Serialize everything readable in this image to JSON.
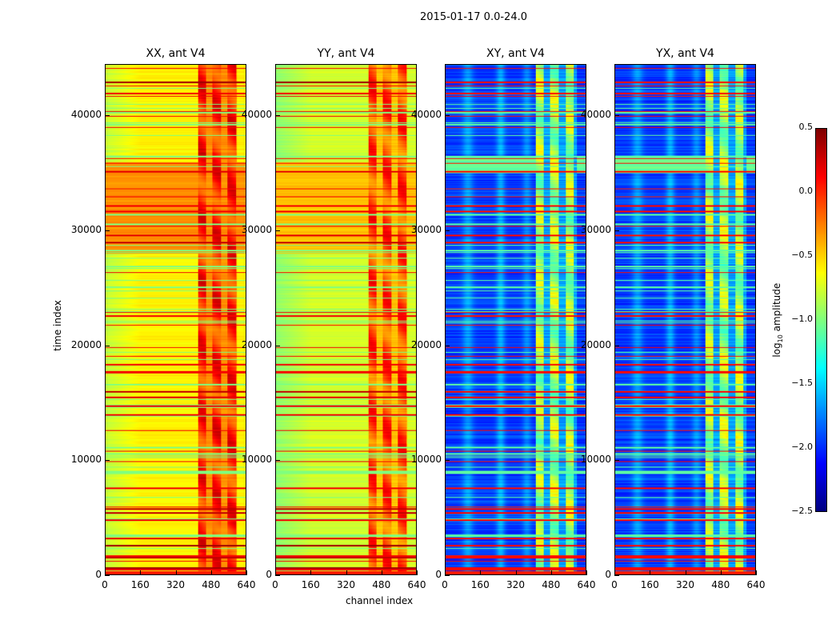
{
  "chart_data": {
    "type": "heatmap",
    "title": "2015-01-17 0.0-24.0",
    "xlabel": "channel index",
    "ylabel": "time index",
    "xlim": [
      0,
      640
    ],
    "ylim": [
      0,
      44450
    ],
    "xticks": [
      "0",
      "160",
      "320",
      "480",
      "640"
    ],
    "yticks": [
      "0",
      "10000",
      "20000",
      "30000",
      "40000"
    ],
    "colorbar": {
      "label": "log10 amplitude",
      "label_base": "log",
      "label_sub": "10",
      "label_rest": " amplitude",
      "range": [
        -2.5,
        0.5
      ],
      "ticks": [
        "0.5",
        "0.0",
        "−0.5",
        "−1.0",
        "−1.5",
        "−2.0",
        "−2.5"
      ],
      "colormap": "jet"
    },
    "panels": [
      {
        "title": "XX, ant V4",
        "base": -0.6,
        "band_value": 0.0,
        "band_channels": [
          420,
          600
        ],
        "orange_time_range": [
          28000,
          36000
        ],
        "orange_value": -0.3
      },
      {
        "title": "YY, ant V4",
        "base": -0.75,
        "band_value": -0.1,
        "band_channels": [
          420,
          600
        ],
        "orange_time_range": [
          28000,
          36000
        ],
        "orange_value": -0.45
      },
      {
        "title": "XY, ant V4",
        "base": -1.95,
        "band_value": -0.9,
        "band_channels": [
          410,
          600
        ],
        "orange_time_range": [
          35000,
          36500
        ],
        "orange_value": -1.1
      },
      {
        "title": "YX, ant V4",
        "base": -1.95,
        "band_value": -0.9,
        "band_channels": [
          410,
          600
        ],
        "orange_time_range": [
          35000,
          36500
        ],
        "orange_value": -1.1
      }
    ]
  }
}
